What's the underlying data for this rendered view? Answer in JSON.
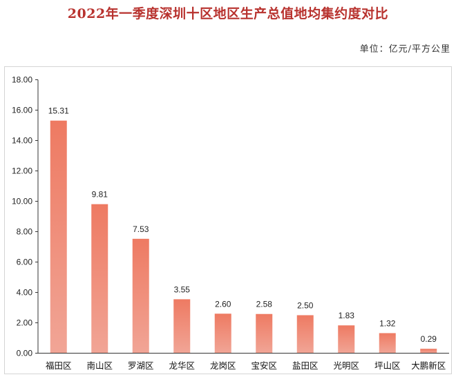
{
  "page": {
    "title": "2022年一季度深圳十区地区生产总值地均集约度对比",
    "unit_label": "单位：亿元/平方公里"
  },
  "colors": {
    "title": "#b8322e",
    "bar_top": "#ee7a62",
    "bar_bottom": "#f1a596",
    "axis": "#333333"
  },
  "chart_data": {
    "type": "bar",
    "title": "2022年一季度深圳十区地区生产总值地均集约度对比",
    "ylabel": "",
    "xlabel": "",
    "ylim": [
      0,
      18
    ],
    "grid": false,
    "categories": [
      "福田区",
      "南山区",
      "罗湖区",
      "龙华区",
      "龙岗区",
      "宝安区",
      "盐田区",
      "光明区",
      "坪山区",
      "大鹏新区"
    ],
    "values": [
      15.31,
      9.81,
      7.53,
      3.55,
      2.6,
      2.58,
      2.5,
      1.83,
      1.32,
      0.29
    ],
    "value_labels": [
      "15.31",
      "9.81",
      "7.53",
      "3.55",
      "2.60",
      "2.58",
      "2.50",
      "1.83",
      "1.32",
      "0.29"
    ],
    "y_ticks": [
      "0.00",
      "2.00",
      "4.00",
      "6.00",
      "8.00",
      "10.00",
      "12.00",
      "14.00",
      "16.00",
      "18.00"
    ],
    "y_tick_values": [
      0,
      2,
      4,
      6,
      8,
      10,
      12,
      14,
      16,
      18
    ]
  }
}
